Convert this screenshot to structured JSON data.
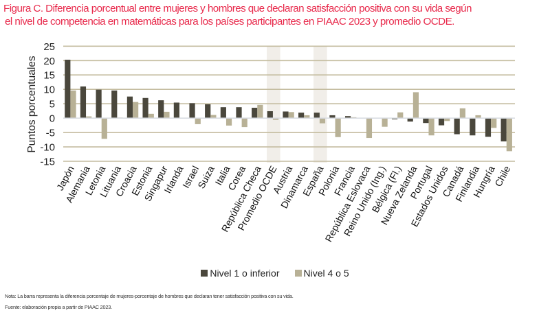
{
  "title_lines": [
    "Figura C. Diferencia porcentual entre mujeres y hombres que declaran satisfacción positiva con su vida según",
    "el nivel de competencia en matemáticas para los países participantes en PIAAC 2023 y promedio OCDE."
  ],
  "colors": {
    "title": "#e8294b",
    "series_dark": "#4a473c",
    "series_light": "#b8b196",
    "gridline": "#c4bc9f",
    "zero_line": "#d6dae0",
    "highlight_band": "#f1eee9"
  },
  "chart_data": {
    "type": "bar",
    "title": "Figura C. Diferencia porcentual entre mujeres y hombres que declaran satisfacción positiva con su vida según el nivel de competencia en matemáticas para los países participantes en PIAAC 2023 y promedio OCDE.",
    "xlabel": "",
    "ylabel": "Puntos porcentuales",
    "ylim": [
      -15,
      25
    ],
    "yticks": [
      25,
      20,
      15,
      10,
      5,
      0,
      -5,
      -10,
      -15
    ],
    "grid": true,
    "legend_position": "bottom",
    "highlighted_categories": [
      "Promedio OCDE",
      "España"
    ],
    "categories": [
      "Japón",
      "Alemania",
      "Letonia",
      "Lituania",
      "Croacia",
      "Estonia",
      "Singapur",
      "Irlanda",
      "Israel",
      "Suiza",
      "Italia",
      "Corea",
      "República Checa",
      "Promedio OCDE",
      "Austria",
      "Dinamarca",
      "España",
      "Polonia",
      "Francia",
      "República Eslovaca",
      "Reino Unido (Ing.)",
      "Bélgica (Fl.)",
      "Nueva Zelanda",
      "Portugal",
      "Estados Unidos",
      "Canadá",
      "Finlandia",
      "Hungría",
      "Chile"
    ],
    "series": [
      {
        "name": "Nivel 1 o inferior",
        "values": [
          20.3,
          11.0,
          9.9,
          9.6,
          7.5,
          7.0,
          6.2,
          5.4,
          5.2,
          4.8,
          3.8,
          3.8,
          3.6,
          2.4,
          2.3,
          1.9,
          1.9,
          1.0,
          0.7,
          0.0,
          0.0,
          -0.4,
          -1.2,
          -1.7,
          -2.5,
          -5.6,
          -6.0,
          -6.5,
          -8.1
        ]
      },
      {
        "name": "Nivel 4 o 5",
        "values": [
          9.6,
          0.6,
          -7.2,
          0.2,
          5.6,
          1.5,
          2.2,
          0.0,
          -2.1,
          1.1,
          -2.6,
          -3.1,
          4.6,
          -0.6,
          2.1,
          1.0,
          -1.8,
          -6.6,
          0.3,
          -6.9,
          -3.0,
          2.0,
          9.0,
          -6.0,
          -1.0,
          3.4,
          1.0,
          -3.4,
          -11.5
        ]
      }
    ]
  },
  "legend": [
    {
      "label": "Nivel 1 o inferior"
    },
    {
      "label": "Nivel 4 o 5"
    }
  ],
  "notes": {
    "nota": "Nota: La barra representa la diferencia porcentaje de mujeres-porcentaje de hombres que declaran tener satisfacción positiva con su vida.",
    "fuente": "Fuente: elaboración propia a partir de PIAAC 2023."
  }
}
